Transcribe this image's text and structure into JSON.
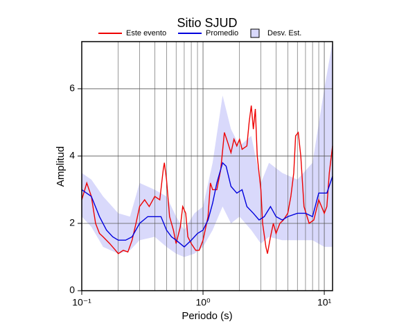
{
  "chart_data": {
    "type": "line",
    "title": "Sitio SJUD",
    "x_label": "Periodo (s)",
    "y_label": "Amplitud",
    "log_x": true,
    "grid": true,
    "xlim": [
      0.1,
      11.7
    ],
    "xticks": [
      {
        "value": 0.1,
        "label": "10⁻¹"
      },
      {
        "value": 1,
        "label": "10⁰"
      },
      {
        "value": 10,
        "label": "10¹"
      }
    ],
    "ylim": [
      0,
      7.4
    ],
    "yticks": [
      0,
      2,
      4,
      6
    ],
    "band": {
      "name": "Desv. Est.",
      "color": "#d9d9fb",
      "x": [
        0.1,
        0.12,
        0.15,
        0.2,
        0.25,
        0.3,
        0.4,
        0.5,
        0.6,
        0.7,
        0.85,
        1.0,
        1.2,
        1.45,
        1.7,
        2.0,
        2.5,
        3.0,
        3.5,
        4.5,
        6,
        8,
        10,
        11.7
      ],
      "lower": [
        2.2,
        1.9,
        1.3,
        1.1,
        1.2,
        1.5,
        1.6,
        1.3,
        1.1,
        1.0,
        1.1,
        1.3,
        1.8,
        2.5,
        2.0,
        2.2,
        1.8,
        1.4,
        1.6,
        1.5,
        1.5,
        1.5,
        1.3,
        1.3
      ],
      "upper": [
        3.5,
        3.3,
        2.8,
        2.3,
        2.2,
        3.2,
        3.0,
        2.8,
        2.2,
        1.8,
        2.3,
        2.5,
        3.8,
        5.8,
        4.8,
        4.3,
        4.6,
        3.2,
        3.8,
        3.5,
        3.3,
        3.8,
        6.0,
        7.4
      ]
    },
    "series": [
      {
        "name": "Este evento",
        "color": "#ee0000",
        "x": [
          0.1,
          0.11,
          0.12,
          0.13,
          0.14,
          0.15,
          0.17,
          0.19,
          0.2,
          0.22,
          0.24,
          0.26,
          0.28,
          0.3,
          0.33,
          0.36,
          0.4,
          0.44,
          0.47,
          0.48,
          0.5,
          0.53,
          0.57,
          0.6,
          0.65,
          0.68,
          0.72,
          0.75,
          0.8,
          0.87,
          0.93,
          1.0,
          1.1,
          1.15,
          1.2,
          1.3,
          1.4,
          1.5,
          1.6,
          1.7,
          1.8,
          1.9,
          2.0,
          2.1,
          2.3,
          2.4,
          2.5,
          2.6,
          2.7,
          2.8,
          3.0,
          3.1,
          3.3,
          3.4,
          3.6,
          3.8,
          4.0,
          4.3,
          4.6,
          5.0,
          5.3,
          5.6,
          5.8,
          6.1,
          6.4,
          6.8,
          7.5,
          8.2,
          9.0,
          10,
          10.5,
          11,
          11.7
        ],
        "values": [
          2.7,
          3.2,
          2.8,
          2.0,
          1.7,
          1.6,
          1.4,
          1.2,
          1.1,
          1.2,
          1.15,
          1.5,
          2.0,
          2.5,
          2.7,
          2.5,
          2.8,
          2.7,
          3.6,
          3.8,
          3.3,
          2.2,
          1.8,
          1.4,
          1.9,
          2.5,
          2.3,
          1.6,
          1.4,
          1.2,
          1.2,
          1.5,
          2.2,
          3.2,
          3.0,
          3.0,
          3.6,
          4.7,
          4.4,
          4.1,
          4.5,
          4.3,
          4.5,
          4.2,
          4.3,
          5.0,
          5.5,
          4.8,
          5.4,
          4.0,
          3.0,
          2.0,
          1.3,
          1.1,
          1.6,
          2.0,
          1.7,
          2.0,
          2.1,
          2.3,
          2.8,
          3.5,
          4.6,
          4.7,
          4.0,
          2.5,
          2.0,
          2.1,
          2.7,
          2.3,
          2.5,
          3.5,
          4.3
        ]
      },
      {
        "name": "Promedio",
        "color": "#0000dd",
        "x": [
          0.1,
          0.12,
          0.14,
          0.16,
          0.18,
          0.2,
          0.23,
          0.26,
          0.3,
          0.35,
          0.4,
          0.45,
          0.5,
          0.55,
          0.6,
          0.7,
          0.8,
          0.9,
          1.0,
          1.1,
          1.2,
          1.3,
          1.45,
          1.55,
          1.7,
          1.9,
          2.1,
          2.3,
          2.6,
          2.9,
          3.2,
          3.6,
          4.0,
          4.5,
          5.0,
          6.0,
          7.0,
          8.0,
          9.0,
          10.5,
          11.7
        ],
        "values": [
          3.0,
          2.8,
          2.2,
          1.8,
          1.6,
          1.5,
          1.5,
          1.6,
          2.0,
          2.2,
          2.2,
          2.2,
          1.8,
          1.6,
          1.5,
          1.3,
          1.5,
          1.7,
          1.8,
          2.1,
          2.6,
          3.2,
          3.8,
          3.7,
          3.1,
          2.9,
          3.0,
          2.5,
          2.3,
          2.1,
          2.2,
          2.5,
          2.2,
          2.1,
          2.2,
          2.3,
          2.3,
          2.2,
          2.9,
          2.9,
          3.4
        ]
      }
    ]
  }
}
